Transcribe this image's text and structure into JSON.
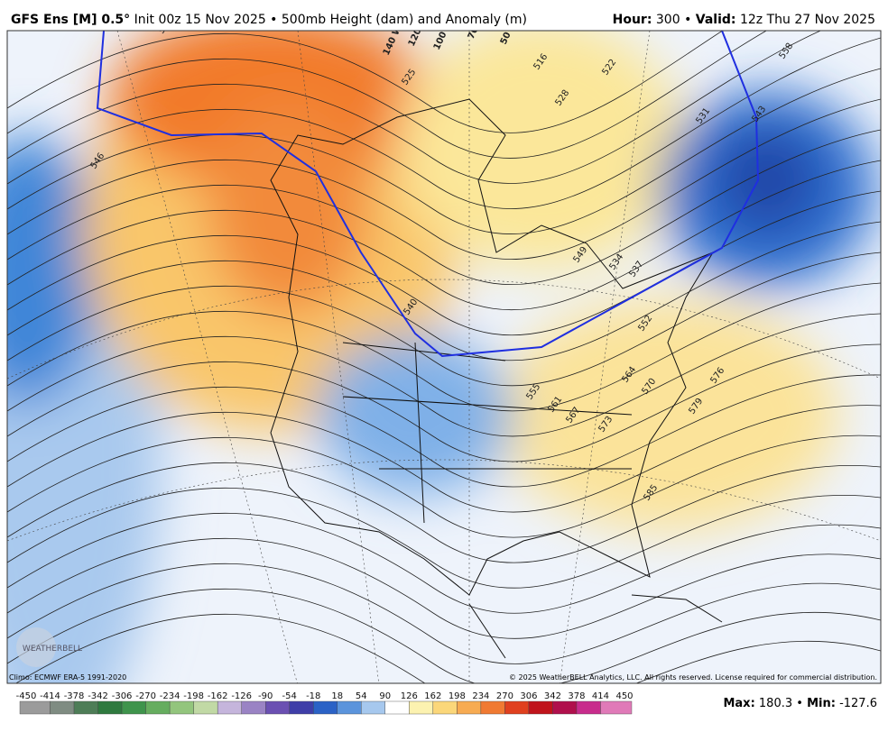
{
  "header": {
    "model": "GFS Ens [M] 0.5°",
    "run": "Init 00z 15 Nov 2025 • 500mb Height (dam) and Anomaly (m)",
    "hour_label": "Hour:",
    "hour_value": "300 •",
    "valid_label": "Valid:",
    "valid_value": "12z Thu 27 Nov 2025"
  },
  "map": {
    "contour_labels": [
      "537",
      "546",
      "525",
      "516",
      "522",
      "528",
      "531",
      "543",
      "558",
      "534",
      "537",
      "540",
      "549",
      "552",
      "555",
      "561",
      "567",
      "573",
      "564",
      "570",
      "576",
      "579",
      "585"
    ],
    "longitude_labels": [
      "140 W",
      "120 W",
      "100 W",
      "70 W",
      "50 W"
    ]
  },
  "footer": {
    "climo": "Climo: ECMWF ERA-5 1991-2020",
    "copyright": "© 2025 WeatherBELL Analytics, LLC. All rights reserved. License required for commercial distribution.",
    "logo": "WEATHERBELL",
    "max_label": "Max:",
    "max_value": "180.3 •",
    "min_label": "Min:",
    "min_value": "-127.6"
  },
  "colorbar": {
    "labels": [
      "-450",
      "-414",
      "-378",
      "-342",
      "-306",
      "-270",
      "-234",
      "-198",
      "-162",
      "-126",
      "-90",
      "-54",
      "-18",
      "18",
      "54",
      "90",
      "126",
      "162",
      "198",
      "234",
      "270",
      "306",
      "342",
      "378",
      "414",
      "450"
    ]
  }
}
